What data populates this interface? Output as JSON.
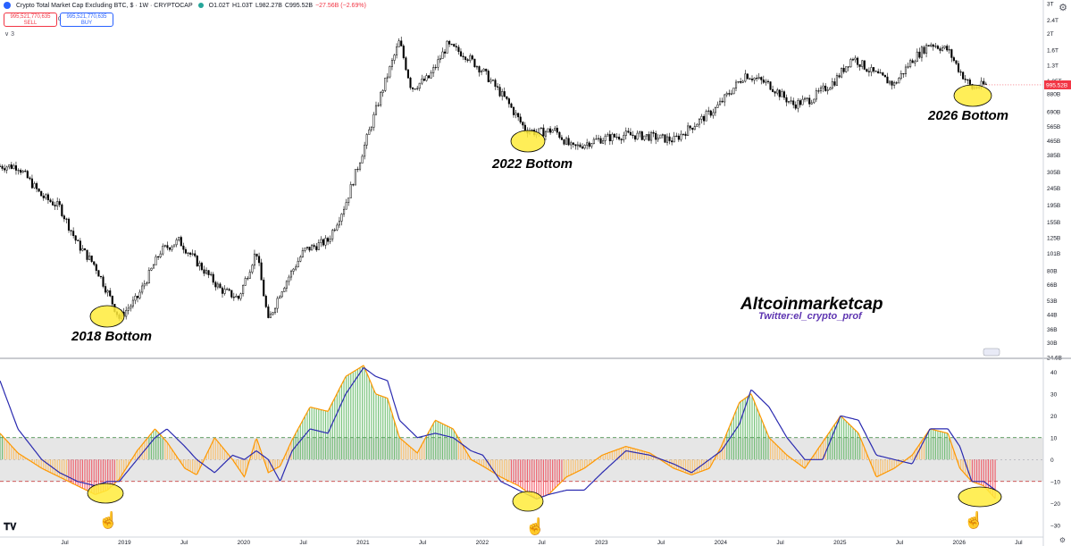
{
  "header": {
    "symbol_title": "Crypto Total Market Cap Excluding BTC, $ · 1W · CRYPTOCAP",
    "ohlc": [
      "O1.02T",
      "H1.03T",
      "L982.27B",
      "C995.52B",
      "−27.56B (−2.69%)"
    ],
    "sell_price": "995,521,770,635",
    "sell_label": "SELL",
    "buy_price": "995,521,770,635",
    "buy_label": "BUY",
    "qty": "0",
    "collapse_label": "∨ 3"
  },
  "colors": {
    "candle": "#000000",
    "osc_green_fill": "#4caf50",
    "osc_red_fill": "#f23645",
    "osc_orange_line": "#ff9800",
    "osc_blue_line": "#2a2ab0",
    "annotation_fill": "#ffeb3b",
    "band_fill": "#e6e6e6",
    "upper_dash": "#2e7d32",
    "lower_dash": "#c62828",
    "last_price": "#f23645"
  },
  "price_axis_labels": [
    "3T",
    "2.4T",
    "2T",
    "1.6T",
    "1.3T",
    "1.05T",
    "880B",
    "690B",
    "565B",
    "465B",
    "385B",
    "305B",
    "245B",
    "195B",
    "155B",
    "125B",
    "101B",
    "80B",
    "66B",
    "53B",
    "44B",
    "36B",
    "30B",
    "24.6B"
  ],
  "last_price_badge": "995.52B",
  "annotations": {
    "bottom_2018": "2018 Bottom",
    "bottom_2022": "2022 Bottom",
    "bottom_2026": "2026 Bottom",
    "watermark_title": "Altcoinmarketcap",
    "watermark_sub": "Twitter:el_crypto_prof"
  },
  "time_axis_labels": [
    "Jul",
    "2019",
    "Jul",
    "2020",
    "Jul",
    "2021",
    "Jul",
    "2022",
    "Jul",
    "2023",
    "Jul",
    "2024",
    "Jul",
    "2025",
    "Jul",
    "2026",
    "Jul"
  ],
  "osc_axis_labels": [
    "40",
    "30",
    "20",
    "10",
    "0",
    "−10",
    "−20",
    "−30"
  ],
  "chart_data": [
    {
      "type": "candlestick",
      "title": "Crypto Total Market Cap Excluding BTC",
      "timeframe": "1W",
      "y_scale": "log",
      "ylim": [
        24.6,
        3000
      ],
      "y_unit": "B USD",
      "x": [
        2018.1,
        2018.3,
        2018.45,
        2018.6,
        2018.75,
        2018.85,
        2018.95,
        2019.1,
        2019.3,
        2019.45,
        2019.6,
        2019.8,
        2019.95,
        2020.1,
        2020.2,
        2020.3,
        2020.5,
        2020.7,
        2020.85,
        2021.0,
        2021.15,
        2021.3,
        2021.4,
        2021.55,
        2021.7,
        2021.85,
        2022.0,
        2022.2,
        2022.35,
        2022.45,
        2022.6,
        2022.75,
        2022.9,
        2023.0,
        2023.2,
        2023.4,
        2023.6,
        2023.8,
        2023.95,
        2024.1,
        2024.2,
        2024.4,
        2024.6,
        2024.75,
        2024.95,
        2025.1,
        2025.25,
        2025.45,
        2025.6,
        2025.75,
        2025.9,
        2026.0,
        2026.1,
        2026.2
      ],
      "close": [
        330,
        220,
        190,
        115,
        85,
        60,
        42,
        55,
        105,
        120,
        90,
        62,
        55,
        105,
        40,
        60,
        105,
        120,
        200,
        420,
        900,
        1800,
        950,
        1100,
        1700,
        1500,
        1200,
        800,
        550,
        520,
        540,
        420,
        460,
        480,
        505,
        495,
        470,
        600,
        720,
        950,
        1150,
        1000,
        760,
        820,
        1050,
        1450,
        1200,
        1000,
        1400,
        1750,
        1600,
        1200,
        950,
        995
      ]
    },
    {
      "type": "line",
      "title": "Oscillator",
      "ylim": [
        -35,
        45
      ],
      "levels": [
        10,
        0,
        -10
      ],
      "x": [
        2017.95,
        2018.1,
        2018.3,
        2018.45,
        2018.6,
        2018.75,
        2018.85,
        2018.95,
        2019.1,
        2019.25,
        2019.35,
        2019.5,
        2019.6,
        2019.75,
        2019.9,
        2020.0,
        2020.1,
        2020.2,
        2020.3,
        2020.4,
        2020.55,
        2020.7,
        2020.85,
        2021.0,
        2021.1,
        2021.2,
        2021.3,
        2021.45,
        2021.6,
        2021.75,
        2021.9,
        2022.0,
        2022.15,
        2022.3,
        2022.45,
        2022.55,
        2022.7,
        2022.85,
        2023.0,
        2023.2,
        2023.4,
        2023.6,
        2023.75,
        2023.9,
        2024.0,
        2024.15,
        2024.25,
        2024.4,
        2024.55,
        2024.7,
        2024.85,
        2025.0,
        2025.15,
        2025.3,
        2025.45,
        2025.6,
        2025.75,
        2025.9,
        2026.0,
        2026.1,
        2026.2,
        2026.3
      ],
      "series": [
        {
          "values": [
            12,
            3,
            -4,
            -8,
            -12,
            -16,
            -14,
            -9,
            4,
            14,
            8,
            -4,
            -7,
            10,
            0,
            -8,
            10,
            -6,
            -3,
            9,
            24,
            22,
            38,
            43,
            30,
            28,
            10,
            3,
            18,
            14,
            0,
            -3,
            -8,
            -12,
            -18,
            -16,
            -8,
            -4,
            2,
            6,
            3,
            -4,
            -7,
            -4,
            6,
            26,
            30,
            10,
            2,
            -4,
            8,
            20,
            12,
            -8,
            -4,
            2,
            14,
            12,
            -4,
            -10,
            -12,
            -18
          ]
        },
        {
          "values": [
            36,
            14,
            0,
            -6,
            -10,
            -12,
            -10,
            -10,
            0,
            10,
            14,
            6,
            0,
            -6,
            2,
            0,
            4,
            0,
            -10,
            4,
            14,
            12,
            30,
            42,
            38,
            36,
            18,
            10,
            12,
            10,
            4,
            2,
            -10,
            -14,
            -18,
            -16,
            -14,
            -14,
            -6,
            4,
            2,
            -2,
            -6,
            0,
            4,
            16,
            32,
            24,
            10,
            0,
            0,
            20,
            18,
            2,
            0,
            -2,
            14,
            14,
            6,
            -10,
            -10,
            -14
          ]
        }
      ]
    }
  ]
}
